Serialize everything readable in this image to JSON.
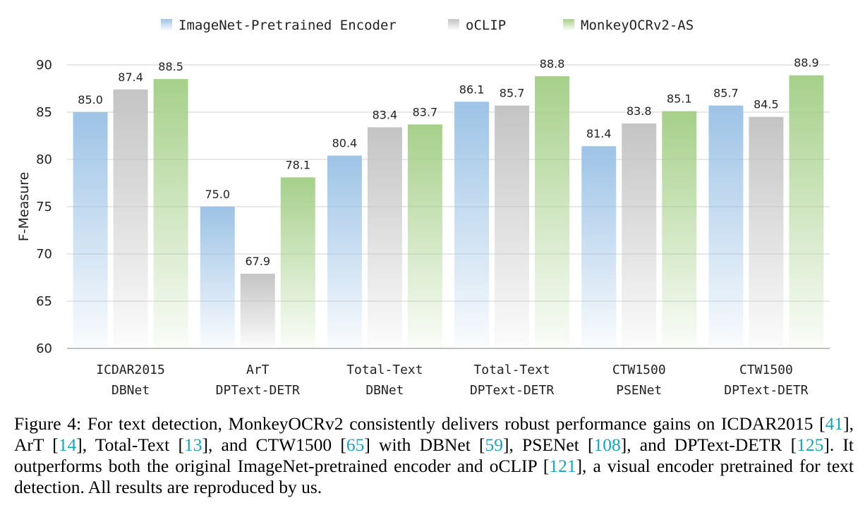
{
  "chart_data": {
    "type": "bar",
    "ylabel": "F-Measure",
    "ylim": [
      60,
      90
    ],
    "yticks": [
      60,
      65,
      70,
      75,
      80,
      85,
      90
    ],
    "grid": true,
    "legend_position": "top-center",
    "categories": [
      [
        "ICDAR2015",
        "DBNet"
      ],
      [
        "ArT",
        "DPText-DETR"
      ],
      [
        "Total-Text",
        "DBNet"
      ],
      [
        "Total-Text",
        "DPText-DETR"
      ],
      [
        "CTW1500",
        "PSENet"
      ],
      [
        "CTW1500",
        "DPText-DETR"
      ]
    ],
    "series": [
      {
        "name": "ImageNet-Pretrained Encoder",
        "color": "#9dc3e6",
        "values": [
          85.0,
          75.0,
          80.4,
          86.1,
          81.4,
          85.7
        ]
      },
      {
        "name": "oCLIP",
        "color": "#c4c4c4",
        "values": [
          87.4,
          67.9,
          83.4,
          85.7,
          83.8,
          84.5
        ]
      },
      {
        "name": "MonkeyOCRv2-AS",
        "color": "#a6d08a",
        "values": [
          88.5,
          78.1,
          83.7,
          88.8,
          85.1,
          88.9
        ]
      }
    ]
  },
  "caption": {
    "parts": [
      {
        "t": "Figure 4: For text detection, MonkeyOCRv2 consistently delivers robust performance gains on ICDAR2015 ["
      },
      {
        "t": "41",
        "ref": true
      },
      {
        "t": "], ArT ["
      },
      {
        "t": "14",
        "ref": true
      },
      {
        "t": "], Total-Text ["
      },
      {
        "t": "13",
        "ref": true
      },
      {
        "t": "], and CTW1500 ["
      },
      {
        "t": "65",
        "ref": true
      },
      {
        "t": "] with DBNet ["
      },
      {
        "t": "59",
        "ref": true
      },
      {
        "t": "], PSENet ["
      },
      {
        "t": "108",
        "ref": true
      },
      {
        "t": "], and DPText-DETR ["
      },
      {
        "t": "125",
        "ref": true
      },
      {
        "t": "]. It outperforms both the original ImageNet-pretrained encoder and oCLIP ["
      },
      {
        "t": "121",
        "ref": true
      },
      {
        "t": "], a visual encoder pretrained for text detection. All results are reproduced by us."
      }
    ]
  }
}
